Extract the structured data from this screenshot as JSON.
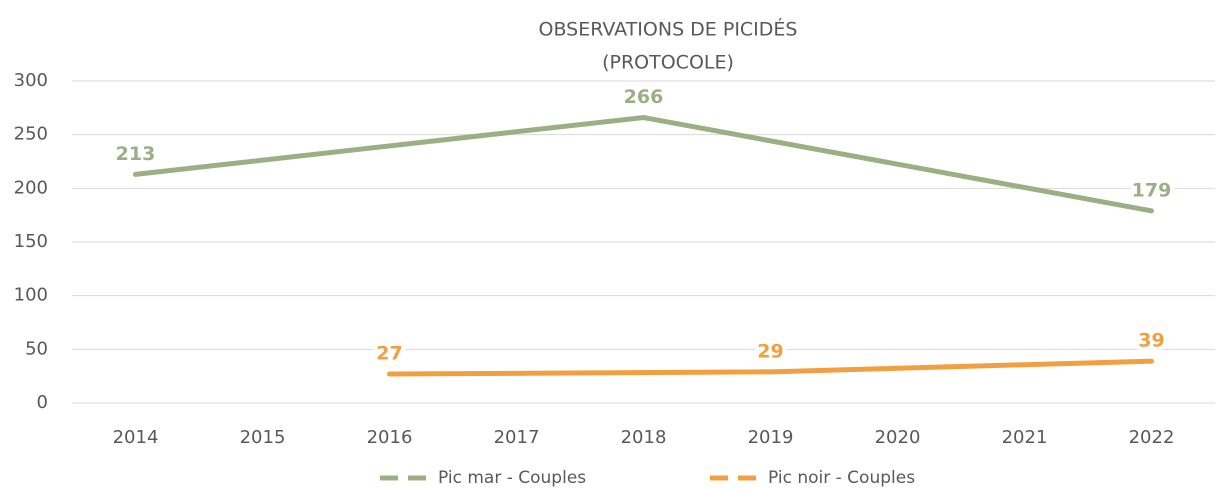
{
  "chart_data": {
    "type": "line",
    "title": [
      "OBSERVATIONS DE PICIDÉS",
      "(PROTOCOLE)"
    ],
    "xlim": [
      2013.5,
      2022.5
    ],
    "xticks": [
      2014,
      2015,
      2016,
      2017,
      2018,
      2019,
      2020,
      2021,
      2022
    ],
    "ylim": [
      0,
      300
    ],
    "yticks": [
      0,
      50,
      100,
      150,
      200,
      250,
      300
    ],
    "grid": true,
    "legend": "bottom",
    "series": [
      {
        "name": "Pic mar - Couples",
        "color": "#9caf84",
        "x": [
          2014,
          2018,
          2022
        ],
        "values": [
          213,
          266,
          179
        ]
      },
      {
        "name": "Pic noir - Couples",
        "color": "#f0a040",
        "x": [
          2016,
          2019,
          2022
        ],
        "values": [
          27,
          29,
          39
        ]
      }
    ]
  }
}
